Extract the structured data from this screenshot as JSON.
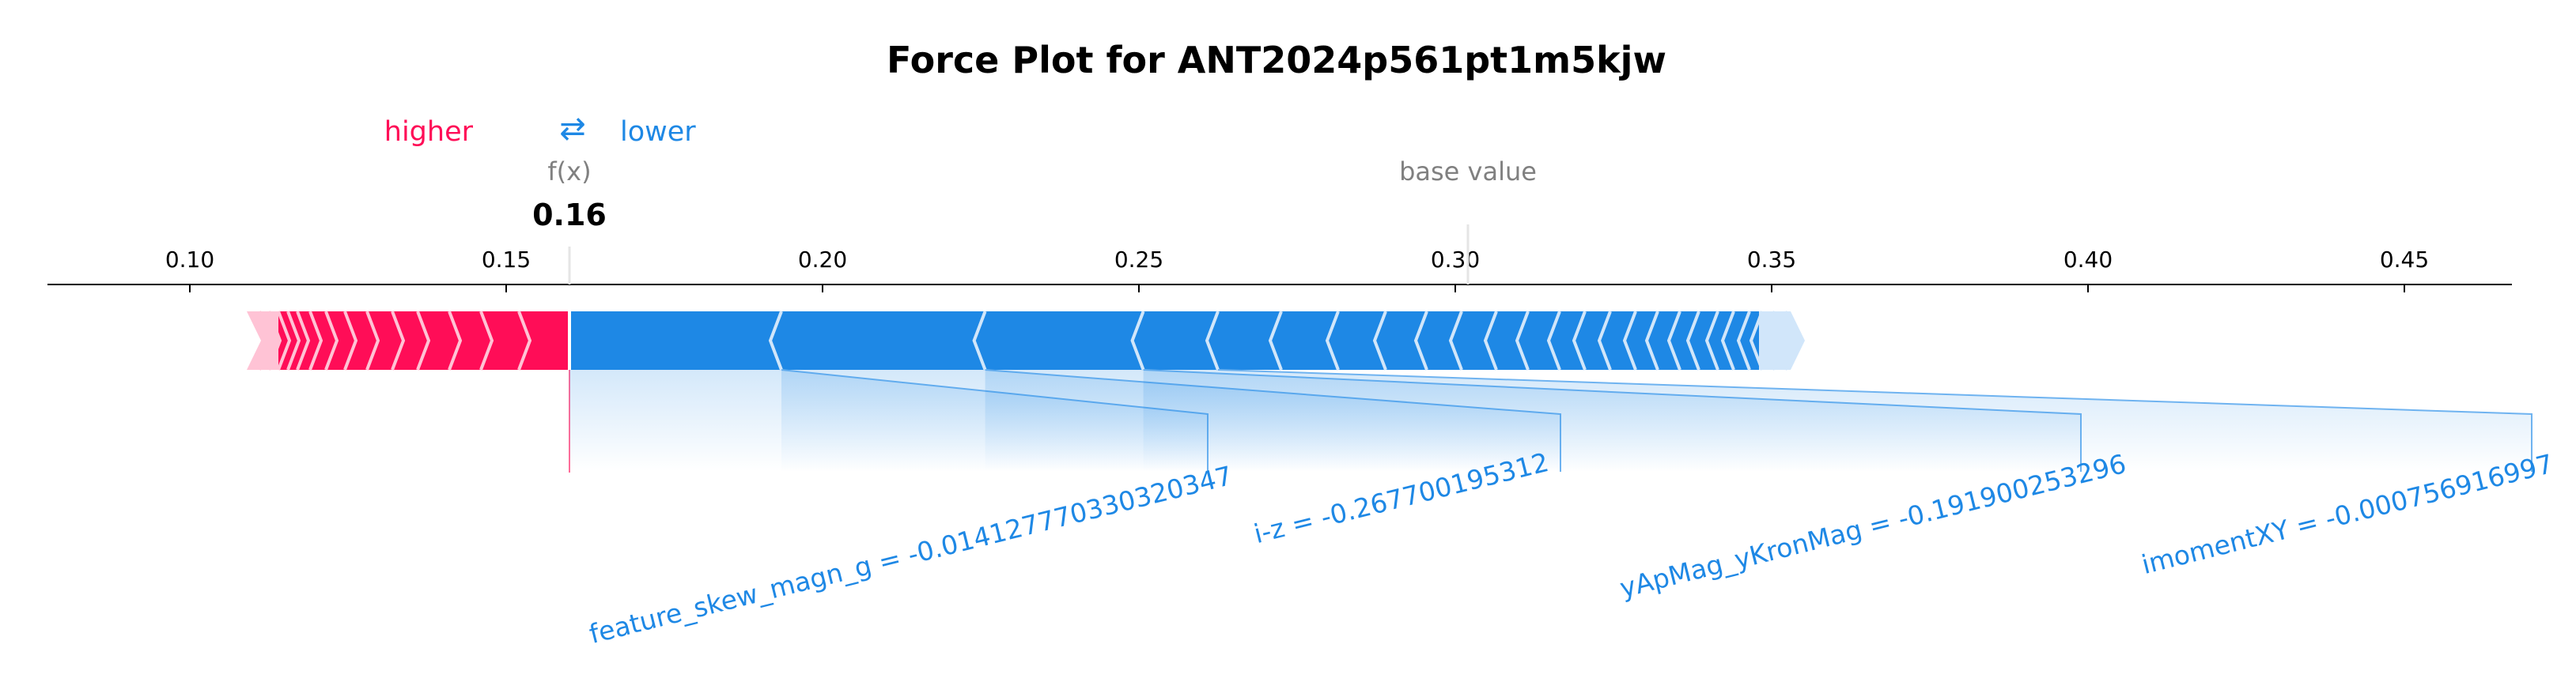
{
  "chart_data": {
    "type": "force",
    "title": "Force Plot for ANT2024p561pt1m5kjw",
    "legend": {
      "higher": "higher",
      "lower": "lower",
      "arrows": "⇄"
    },
    "fx_label": "f(x)",
    "fx_value_text": "0.16",
    "fx_value": 0.16,
    "base_label": "base value",
    "base_value": 0.302,
    "xlim": [
      0.0775,
      0.467
    ],
    "x_ticks": [
      0.1,
      0.15,
      0.2,
      0.25,
      0.3,
      0.35,
      0.4,
      0.45
    ],
    "x_tick_labels": [
      "0.10",
      "0.15",
      "0.20",
      "0.25",
      "0.30",
      "0.35",
      "0.40",
      "0.45"
    ],
    "positive_span": [
      0.109,
      0.16
    ],
    "negative_span": [
      0.16,
      0.353
    ],
    "positive_separators": [
      0.111,
      0.1125,
      0.114,
      0.1155,
      0.117,
      0.119,
      0.1215,
      0.1245,
      0.128,
      0.132,
      0.136,
      0.141,
      0.146,
      0.152
    ],
    "negative_separators": [
      0.1935,
      0.2257,
      0.2507,
      0.2625,
      0.2725,
      0.2815,
      0.289,
      0.2955,
      0.301,
      0.3065,
      0.3115,
      0.3165,
      0.3205,
      0.3245,
      0.3285,
      0.332,
      0.3355,
      0.3385,
      0.3415,
      0.344,
      0.3465,
      0.3485,
      0.3505,
      0.3525
    ],
    "annotations": [
      {
        "text": "feature_skew_magn_g = -0.0141277703303203​47",
        "from": 0.16,
        "to": 0.1935
      },
      {
        "text": "i-z = -0.267700195312",
        "from": 0.1935,
        "to": 0.2257
      },
      {
        "text": "yApMag_yKronMag = -0.191900253296",
        "from": 0.2257,
        "to": 0.2507
      },
      {
        "text": "imomentXY = -0.000756916997",
        "from": 0.2507,
        "to": 0.2625
      }
    ],
    "colors": {
      "higher": "#ff0d57",
      "lower": "#1e88e5",
      "higher_light": "#ffc3d5",
      "lower_light": "#d1e6fa",
      "label_gray": "#808080"
    }
  }
}
